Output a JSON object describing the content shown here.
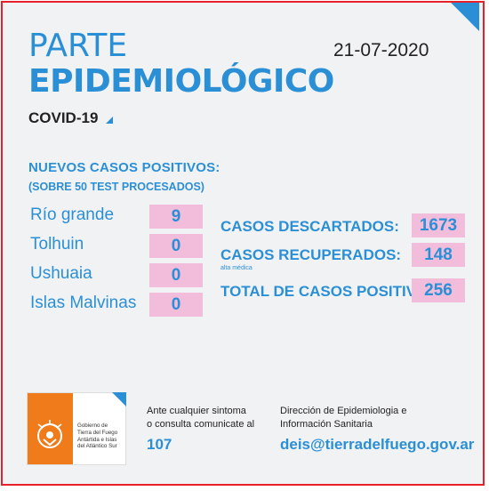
{
  "header": {
    "title_line1": "PARTE",
    "title_line2": "EPIDEMIOLÓGICO",
    "date": "21-07-2020",
    "subtitle": "COVID-19"
  },
  "nuevos": {
    "heading": "NUEVOS CASOS POSITIVOS:",
    "subheading": "(SOBRE 50 TEST PROCESADOS)",
    "rows": [
      {
        "label": "Río grande",
        "value": "9"
      },
      {
        "label": "Tolhuin",
        "value": "0"
      },
      {
        "label": "Ushuaia",
        "value": "0"
      },
      {
        "label": "Islas Malvinas",
        "value": "0"
      }
    ]
  },
  "totales": {
    "descartados_label": "CASOS DESCARTADOS:",
    "descartados_value": "1673",
    "recuperados_label": "CASOS RECUPERADOS:",
    "recuperados_note": "alta médica",
    "recuperados_value": "148",
    "positivos_label": "TOTAL DE CASOS POSITIVOS",
    "positivos_value": "256"
  },
  "footer": {
    "logo_text": [
      "Gobierno de",
      "Tierra del Fuego",
      "Antártida e Islas",
      "del Atlántico Sur"
    ],
    "contact_line1": "Ante cualquier sintoma",
    "contact_line2": "o consulta comunicate al",
    "phone": "107",
    "dir_line1": "Dirección de Epidemiologia e",
    "dir_line2": "Información Sanitaria",
    "email": "deis@tierradelfuego.gov.ar"
  },
  "colors": {
    "accent_blue": "#2b8fd6",
    "value_pink": "#f2bcdb",
    "frame_red": "#e8202a",
    "logo_orange": "#ef7b1a"
  }
}
